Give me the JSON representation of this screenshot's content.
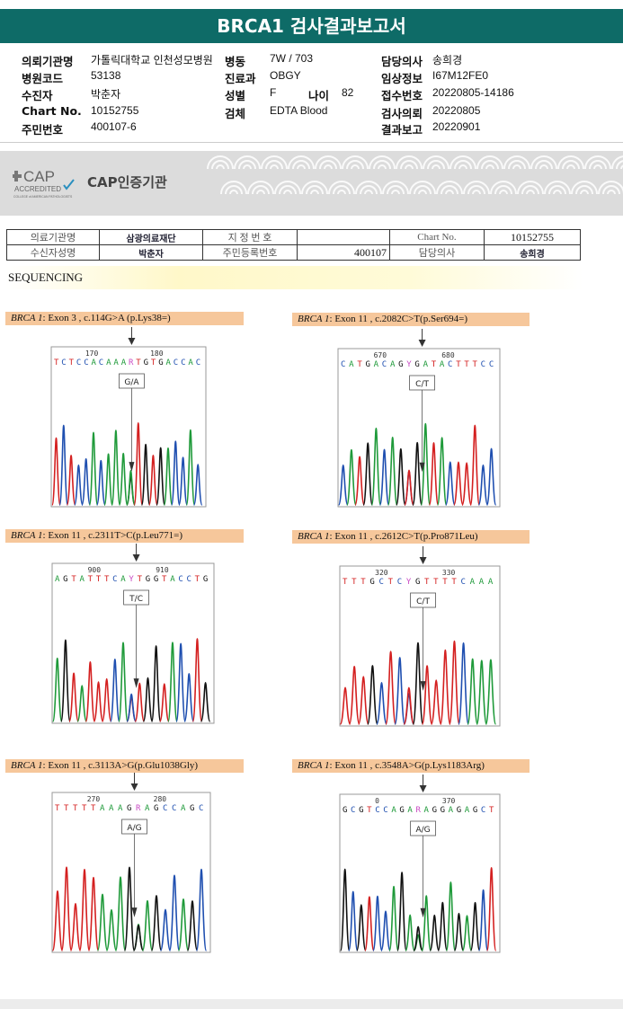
{
  "report": {
    "title": "BRCA1 검사결과보고서"
  },
  "info": {
    "left": [
      {
        "label": "의뢰기관명",
        "value": "가톨릭대학교 인천성모병원"
      },
      {
        "label": "병원코드",
        "value": "53138"
      },
      {
        "label": "수진자",
        "value": "박춘자"
      },
      {
        "label": "Chart No.",
        "value": "10152755"
      },
      {
        "label": "주민번호",
        "value": "400107-6"
      }
    ],
    "mid": [
      {
        "label": "병동",
        "value": "7W / 703"
      },
      {
        "label": "진료과",
        "value": "OBGY"
      },
      {
        "label": "성별",
        "value": "F"
      },
      {
        "label": "검체",
        "value": "EDTA Blood"
      }
    ],
    "age": {
      "label": "나이",
      "value": "82"
    },
    "right": [
      {
        "label": "담당의사",
        "value": "송희경"
      },
      {
        "label": "임상정보",
        "value": "I67M12FE0"
      },
      {
        "label": "접수번호",
        "value": "20220805-14186"
      },
      {
        "label": "검사의뢰",
        "value": "20220805"
      },
      {
        "label": "결과보고",
        "value": "20220901"
      }
    ]
  },
  "cap": {
    "logo_text": "CAP",
    "accredited": "ACCREDITED",
    "college": "COLLEGE of AMERICAN PATHOLOGISTS",
    "label": "CAP인증기관"
  },
  "patient_table": {
    "r1": [
      "의료기관명",
      "삼광의료재단",
      "지 정 번 호",
      "",
      "Chart No.",
      "10152755"
    ],
    "r2": [
      "수신자성명",
      "박춘자",
      "주민등록번호",
      "400107",
      "담당의사",
      "송희경"
    ]
  },
  "section": {
    "title": "SEQUENCING"
  },
  "colors": {
    "A": "#1f9a3a",
    "C": "#1f4fb0",
    "G": "#111111",
    "T": "#d42020"
  },
  "variants": [
    {
      "gene": "BRCA 1",
      "desc": ": Exon 3 , c.114G>A (p.Lys38=)",
      "pos1": "170",
      "pos2": "180",
      "seq": "TCTCCACAAARTGTGACCAC",
      "call": "G/A",
      "het": "GA"
    },
    {
      "gene": "BRCA 1",
      "desc": ": Exon 11 , c.2082C>T(p.Ser694=)",
      "pos1": "670",
      "pos2": "680",
      "seq": "CATGACAGYGATACTTTCC",
      "call": "C/T",
      "het": "CT"
    },
    {
      "gene": "BRCA 1",
      "desc": ": Exon 11 , c.2311T>C(p.Leu771=)",
      "pos1": "900",
      "pos2": "910",
      "seq": "AGTATTTCAYTGGTACCTG",
      "call": "T/C",
      "het": "TC"
    },
    {
      "gene": "BRCA 1",
      "desc": ": Exon 11 , c.2612C>T(p.Pro871Leu)",
      "pos1": "320",
      "pos2": "330",
      "seq": "TTTGCTCYGTTTTCAAA",
      "call": "C/T",
      "het": "CT"
    },
    {
      "gene": "BRCA 1",
      "desc": ": Exon 11 , c.3113A>G(p.Glu1038Gly)",
      "pos1": "270",
      "pos2": "280",
      "seq": "TTTTTAAAGRAGCCAGC",
      "call": "A/G",
      "het": "AG"
    },
    {
      "gene": "BRCA 1",
      "desc": ": Exon 11 , c.3548A>G(p.Lys1183Arg)",
      "pos1": "0",
      "pos2": "370",
      "seq": "GCGTCCAGARAGGAGAGCT",
      "call": "A/G",
      "het": "AG"
    }
  ]
}
